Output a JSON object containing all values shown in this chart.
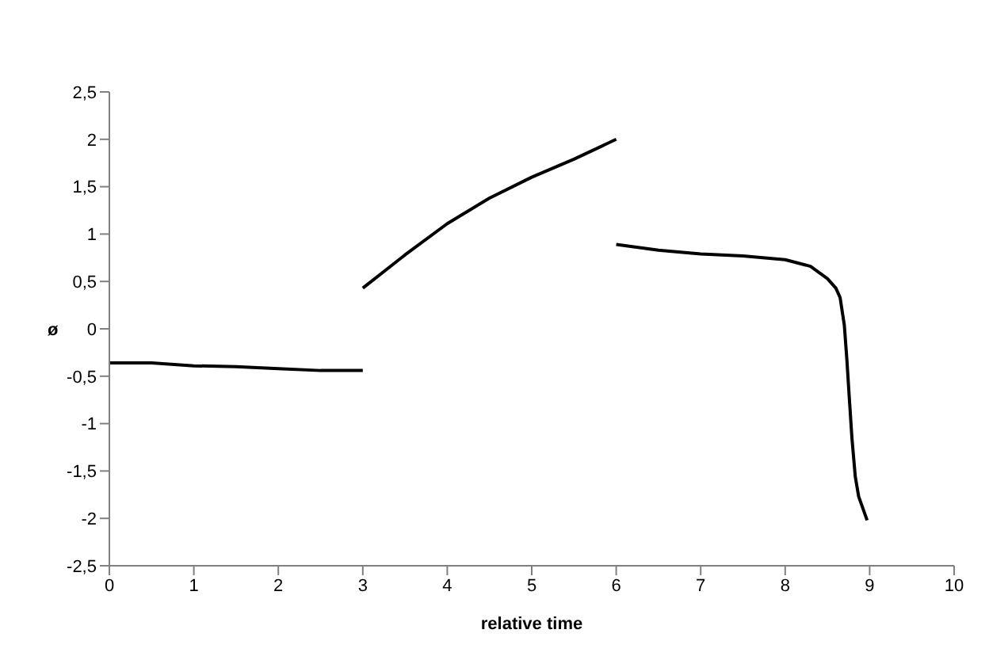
{
  "chart_data": {
    "type": "line",
    "xlabel": "relative time",
    "ylabel": "ø",
    "series": [
      {
        "color": "#000000",
        "x": [
          0,
          0.5,
          1,
          1.5,
          2,
          2.5,
          3
        ],
        "values": [
          -0.36,
          -0.36,
          -0.39,
          -0.4,
          -0.42,
          -0.44,
          -0.44
        ]
      },
      {
        "color": "#000000",
        "x": [
          3,
          3.5,
          4,
          4.5,
          5,
          5.5,
          6
        ],
        "values": [
          0.43,
          0.78,
          1.11,
          1.38,
          1.6,
          1.79,
          2.0
        ]
      },
      {
        "color": "#000000",
        "x": [
          6,
          6.5,
          7,
          7.5,
          8,
          8.3,
          8.5,
          8.6,
          8.65,
          8.7,
          8.73,
          8.76,
          8.79,
          8.83,
          8.87,
          8.97
        ],
        "values": [
          0.89,
          0.83,
          0.79,
          0.77,
          0.73,
          0.66,
          0.53,
          0.43,
          0.33,
          0.04,
          -0.32,
          -0.74,
          -1.15,
          -1.56,
          -1.77,
          -2.02
        ]
      }
    ],
    "xlim": [
      0,
      10
    ],
    "xticks": [
      0,
      1,
      2,
      3,
      4,
      5,
      6,
      7,
      8,
      9,
      10
    ],
    "ylim": [
      -2.5,
      2.5
    ],
    "yticks": [
      {
        "value": -2.5,
        "label": "-2,5"
      },
      -2,
      {
        "value": -1.5,
        "label": "-1,5"
      },
      -1,
      {
        "value": -0.5,
        "label": "-0,5"
      },
      0,
      {
        "value": 0.5,
        "label": "0,5"
      },
      1,
      {
        "value": 1.5,
        "label": "1,5"
      },
      2,
      {
        "value": 2.5,
        "label": "2,5"
      }
    ],
    "grid": false,
    "legend": false,
    "marker": "none",
    "line_style": "solid"
  }
}
